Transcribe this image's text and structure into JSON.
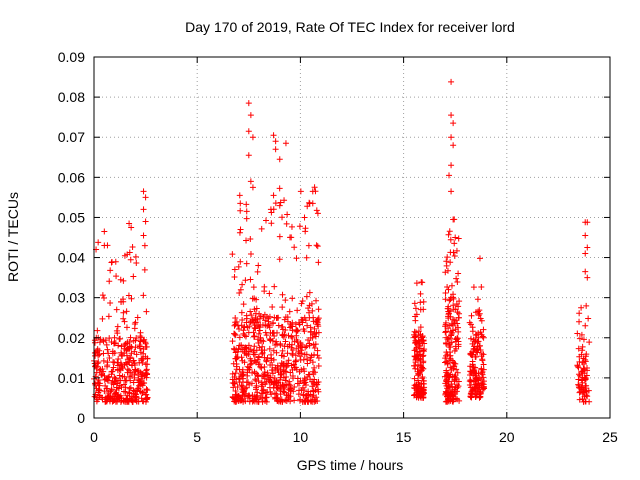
{
  "chart_data": {
    "type": "scatter",
    "title": "Day 170 of 2019, Rate Of TEC Index for receiver lord",
    "xlabel": "GPS time / hours",
    "ylabel": "ROTI / TECUs",
    "xlim": [
      0,
      25
    ],
    "ylim": [
      0,
      0.09
    ],
    "x_ticks": [
      0,
      5,
      10,
      15,
      20,
      25
    ],
    "x_tick_labels": [
      "0",
      "5",
      "10",
      "15",
      "20",
      "25"
    ],
    "y_ticks": [
      0,
      0.01,
      0.02,
      0.03,
      0.04,
      0.05,
      0.06,
      0.07,
      0.08,
      0.09
    ],
    "y_tick_labels": [
      "0",
      "0.01",
      "0.02",
      "0.03",
      "0.04",
      "0.05",
      "0.06",
      "0.07",
      "0.08",
      "0.09"
    ],
    "grid": true,
    "marker": "+",
    "series_color": "#ff0000",
    "series": [
      {
        "name": "ROTI",
        "clusters": [
          {
            "x": [
              0.0,
              2.6
            ],
            "y_core": [
              0.004,
              0.02
            ],
            "y_max": 0.047,
            "n": 400
          },
          {
            "x": [
              6.7,
              10.9
            ],
            "y_core": [
              0.004,
              0.025
            ],
            "y_max": 0.058,
            "n": 700
          },
          {
            "x": [
              15.5,
              16.0
            ],
            "y_core": [
              0.005,
              0.02
            ],
            "y_max": 0.034,
            "n": 150
          },
          {
            "x": [
              17.0,
              17.7
            ],
            "y_core": [
              0.004,
              0.03
            ],
            "y_max": 0.05,
            "n": 200
          },
          {
            "x": [
              18.2,
              18.9
            ],
            "y_core": [
              0.005,
              0.02
            ],
            "y_max": 0.033,
            "n": 150
          },
          {
            "x": [
              23.4,
              24.0
            ],
            "y_core": [
              0.004,
              0.015
            ],
            "y_max": 0.028,
            "n": 70
          }
        ],
        "outliers": [
          [
            7.5,
            0.0785
          ],
          [
            7.6,
            0.0755
          ],
          [
            7.5,
            0.0715
          ],
          [
            7.7,
            0.07
          ],
          [
            7.5,
            0.0655
          ],
          [
            8.7,
            0.0705
          ],
          [
            8.8,
            0.069
          ],
          [
            8.8,
            0.067
          ],
          [
            9.0,
            0.0645
          ],
          [
            9.3,
            0.0685
          ],
          [
            7.6,
            0.059
          ],
          [
            7.7,
            0.0575
          ],
          [
            7.4,
            0.0515
          ],
          [
            8.7,
            0.0555
          ],
          [
            10.6,
            0.0565
          ],
          [
            17.3,
            0.0838
          ],
          [
            17.3,
            0.0755
          ],
          [
            17.4,
            0.0735
          ],
          [
            17.3,
            0.07
          ],
          [
            17.4,
            0.068
          ],
          [
            17.3,
            0.063
          ],
          [
            17.2,
            0.0605
          ],
          [
            17.3,
            0.0565
          ],
          [
            17.4,
            0.0495
          ],
          [
            17.5,
            0.045
          ],
          [
            2.4,
            0.0565
          ],
          [
            2.5,
            0.055
          ],
          [
            2.4,
            0.052
          ],
          [
            2.5,
            0.049
          ],
          [
            2.4,
            0.0455
          ],
          [
            1.7,
            0.0485
          ],
          [
            1.8,
            0.0475
          ],
          [
            0.5,
            0.0465
          ],
          [
            0.5,
            0.043
          ],
          [
            0.1,
            0.042
          ],
          [
            23.8,
            0.0488
          ],
          [
            23.9,
            0.0488
          ],
          [
            23.8,
            0.0455
          ],
          [
            23.9,
            0.0425
          ],
          [
            23.8,
            0.041
          ],
          [
            23.8,
            0.0365
          ],
          [
            23.9,
            0.035
          ],
          [
            23.6,
            0.0275
          ],
          [
            23.5,
            0.024
          ],
          [
            23.8,
            0.023
          ],
          [
            18.7,
            0.0398
          ],
          [
            15.9,
            0.0338
          ],
          [
            10.2,
            0.05
          ],
          [
            10.6,
            0.0535
          ],
          [
            7.1,
            0.047
          ]
        ]
      }
    ]
  }
}
